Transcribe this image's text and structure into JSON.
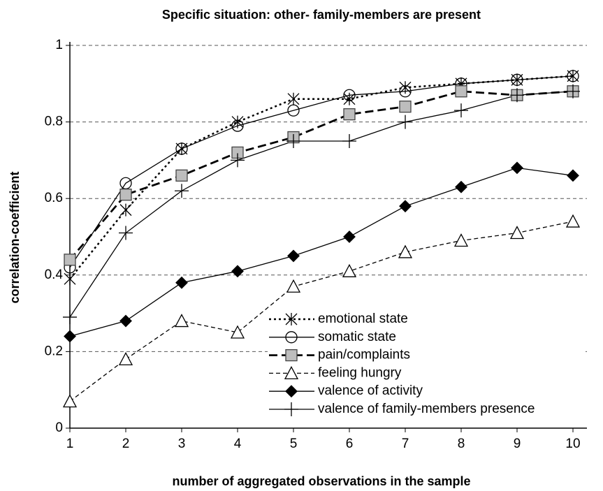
{
  "chart_data": {
    "type": "line",
    "title": "Specific situation: other- family-members are present",
    "xlabel": "number of aggregated observations in the sample",
    "ylabel": "correlation-coefficient",
    "x": [
      1,
      2,
      3,
      4,
      5,
      6,
      7,
      8,
      9,
      10
    ],
    "xlim": [
      1,
      10
    ],
    "xticks": [
      1,
      2,
      3,
      4,
      5,
      6,
      7,
      8,
      9,
      10
    ],
    "ylim": [
      0,
      1
    ],
    "yticks": [
      0,
      0.2,
      0.4,
      0.6,
      0.8,
      1
    ],
    "grid": true,
    "legend": "lower right",
    "series": [
      {
        "name": "emotional state",
        "color": "#000000",
        "marker": "asterisk",
        "dash": "dotted",
        "values": [
          0.39,
          0.57,
          0.73,
          0.8,
          0.86,
          0.86,
          0.89,
          0.9,
          0.91,
          0.92
        ]
      },
      {
        "name": "somatic state",
        "color": "#000000",
        "marker": "circle",
        "dash": "solid",
        "values": [
          0.42,
          0.64,
          0.73,
          0.79,
          0.83,
          0.87,
          0.88,
          0.9,
          0.91,
          0.92
        ]
      },
      {
        "name": "pain/complaints",
        "color": "#000000",
        "marker": "square",
        "dash": "dashed-bold",
        "values": [
          0.44,
          0.61,
          0.66,
          0.72,
          0.76,
          0.82,
          0.84,
          0.88,
          0.87,
          0.88
        ]
      },
      {
        "name": "feeling hungry",
        "color": "#000000",
        "marker": "triangle",
        "dash": "dashed",
        "values": [
          0.07,
          0.18,
          0.28,
          0.25,
          0.37,
          0.41,
          0.46,
          0.49,
          0.51,
          0.54
        ]
      },
      {
        "name": "valence of activity",
        "color": "#000000",
        "marker": "diamond",
        "dash": "solid",
        "values": [
          0.24,
          0.28,
          0.38,
          0.41,
          0.45,
          0.5,
          0.58,
          0.63,
          0.68,
          0.66
        ]
      },
      {
        "name": "valence of family-members presence",
        "color": "#000000",
        "marker": "plus",
        "dash": "solid",
        "values": [
          0.29,
          0.51,
          0.62,
          0.7,
          0.75,
          0.75,
          0.8,
          0.83,
          0.87,
          0.88
        ]
      }
    ]
  }
}
